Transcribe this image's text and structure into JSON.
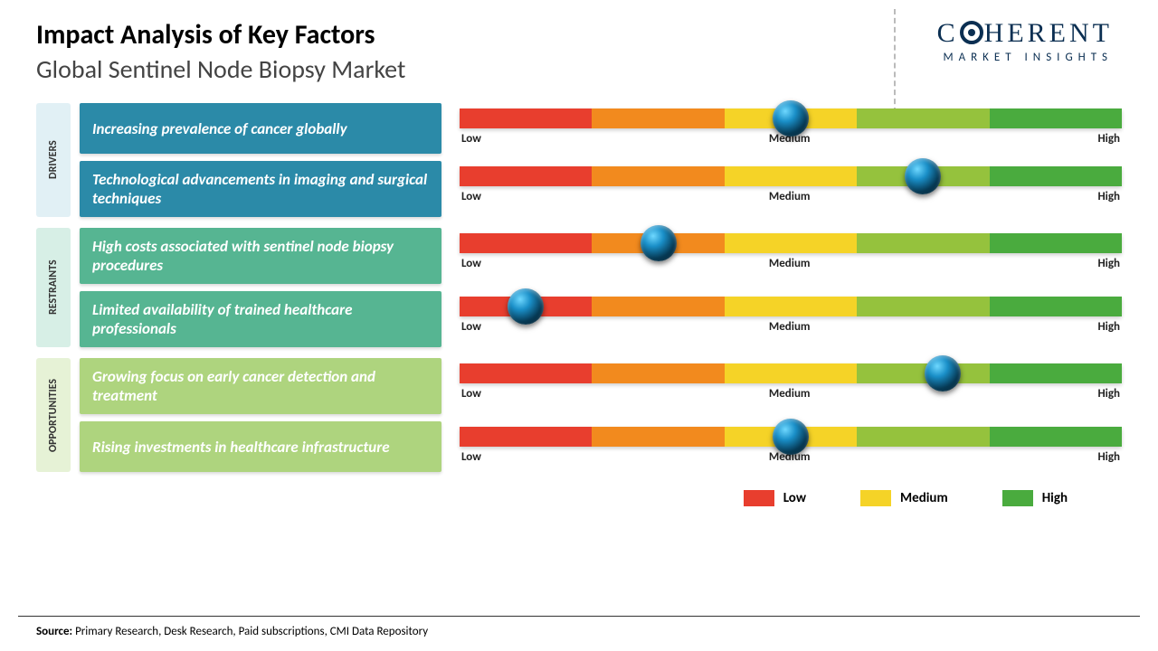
{
  "header": {
    "title": "Impact Analysis of Key Factors",
    "subtitle": "Global Sentinel Node Biopsy Market"
  },
  "logo": {
    "part1": "C",
    "part2": "HERENT",
    "sub": "MARKET INSIGHTS"
  },
  "scale": {
    "segment_colors": [
      "#e83e2e",
      "#f28a1e",
      "#f5d327",
      "#95c23d",
      "#4aab3e"
    ],
    "tick_labels": {
      "low": "Low",
      "medium": "Medium",
      "high": "High"
    }
  },
  "categories": [
    {
      "name": "DRIVERS",
      "label_bg": "#e1f0f5",
      "box_color": "#2b8aa8",
      "rows": [
        {
          "text": "Increasing prevalence of cancer globally",
          "value_pct": 50
        },
        {
          "text": "Technological advancements in imaging and surgical techniques",
          "value_pct": 70
        }
      ]
    },
    {
      "name": "RESTRAINTS",
      "label_bg": "#d7efe6",
      "box_color": "#56b592",
      "rows": [
        {
          "text": "High costs associated with sentinel node biopsy procedures",
          "value_pct": 30
        },
        {
          "text": "Limited availability of trained healthcare professionals",
          "value_pct": 10
        }
      ]
    },
    {
      "name": "OPPORTUNITIES",
      "label_bg": "#e6f2d6",
      "box_color": "#aed47e",
      "rows": [
        {
          "text": "Growing focus on early cancer detection and treatment",
          "value_pct": 73
        },
        {
          "text": "Rising investments in healthcare infrastructure",
          "value_pct": 50
        }
      ]
    }
  ],
  "legend": {
    "items": [
      {
        "label": "Low",
        "color": "#e83e2e"
      },
      {
        "label": "Medium",
        "color": "#f5d327"
      },
      {
        "label": "High",
        "color": "#4aab3e"
      }
    ]
  },
  "source": {
    "label": "Source:",
    "text": " Primary Research, Desk Research, Paid subscriptions, CMI Data Repository"
  }
}
